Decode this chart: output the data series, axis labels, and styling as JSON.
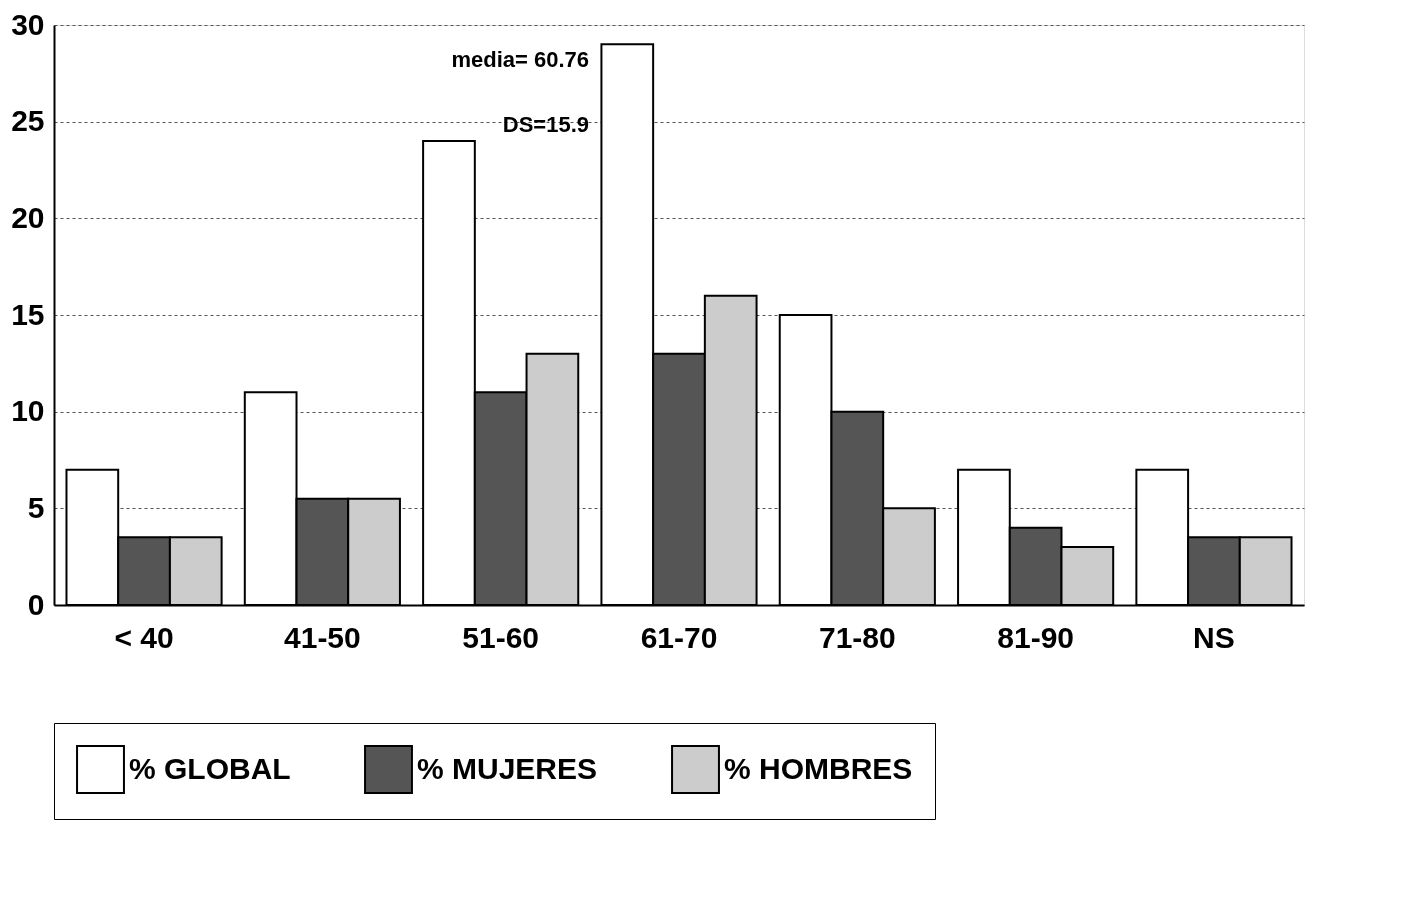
{
  "chart_data": {
    "type": "bar",
    "categories": [
      "< 40",
      "41-50",
      "51-60",
      "61-70",
      "71-80",
      "81-90",
      "NS"
    ],
    "series": [
      {
        "name": "% GLOBAL",
        "color": "#ffffff",
        "values": [
          7,
          11,
          24,
          29,
          15,
          7,
          7
        ]
      },
      {
        "name": "% MUJERES",
        "color": "#555555",
        "values": [
          3.5,
          5.5,
          11,
          13,
          10,
          4,
          3.5
        ]
      },
      {
        "name": "% HOMBRES",
        "color": "#cccccc",
        "values": [
          3.5,
          5.5,
          13,
          16,
          5,
          3,
          3.5
        ]
      }
    ],
    "ylim": [
      0,
      30
    ],
    "yticks": [
      0,
      5,
      10,
      15,
      20,
      25,
      30
    ],
    "grid": "y",
    "legend": "bottom",
    "annotations": [
      "media= 60.76",
      "DS=15.9"
    ]
  }
}
